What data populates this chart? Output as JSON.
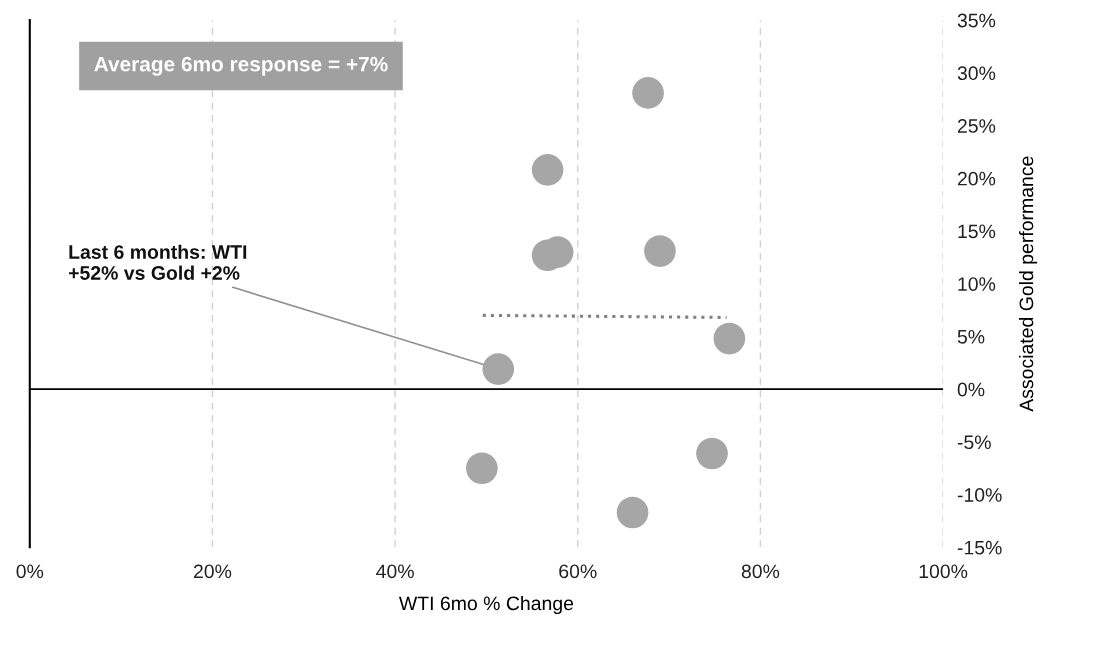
{
  "chart_data": {
    "type": "scatter",
    "xlabel": "WTI 6mo % Change",
    "ylabel": "Associated Gold performance",
    "annotations": [
      "Average 6mo response = +7%",
      {
        "text": "Last 6 months: WTI\n+52% vs Gold +2%",
        "x": 51.3,
        "y": 1.9
      }
    ],
    "series": [
      {
        "marker": "circle",
        "color": "#a6a6a6",
        "x": [
          67.7,
          56.7,
          56.7,
          57.8,
          69.0,
          76.6,
          51.3,
          49.5,
          74.7,
          66.0
        ],
        "values": [
          28.1,
          20.8,
          12.7,
          13.0,
          13.1,
          4.8,
          1.9,
          -7.5,
          -6.1,
          -11.7
        ]
      },
      {
        "type": "line",
        "color": "#808080",
        "line_style": "dotted",
        "x": [
          49.6,
          76.3
        ],
        "values": [
          7.0,
          6.8
        ]
      }
    ],
    "ref_lines": [
      {
        "axis": "y",
        "value": 0,
        "color": "#000000"
      }
    ],
    "xlim": [
      0,
      100
    ],
    "xticks": [
      {
        "value": 0,
        "label": "0%"
      },
      {
        "value": 20,
        "label": "20%"
      },
      {
        "value": 40,
        "label": "40%"
      },
      {
        "value": 60,
        "label": "60%"
      },
      {
        "value": 80,
        "label": "80%"
      },
      {
        "value": 100,
        "label": "100%"
      }
    ],
    "ylim": [
      -15,
      35
    ],
    "yticks": [
      {
        "value": -15,
        "label": "-15%"
      },
      {
        "value": -10,
        "label": "-10%"
      },
      {
        "value": -5,
        "label": "-5%"
      },
      {
        "value": 0,
        "label": "0%"
      },
      {
        "value": 5,
        "label": "5%"
      },
      {
        "value": 10,
        "label": "10%"
      },
      {
        "value": 15,
        "label": "15%"
      },
      {
        "value": 20,
        "label": "20%"
      },
      {
        "value": 25,
        "label": "25%"
      },
      {
        "value": 30,
        "label": "30%"
      },
      {
        "value": 35,
        "label": "35%"
      }
    ],
    "grid": "x"
  }
}
